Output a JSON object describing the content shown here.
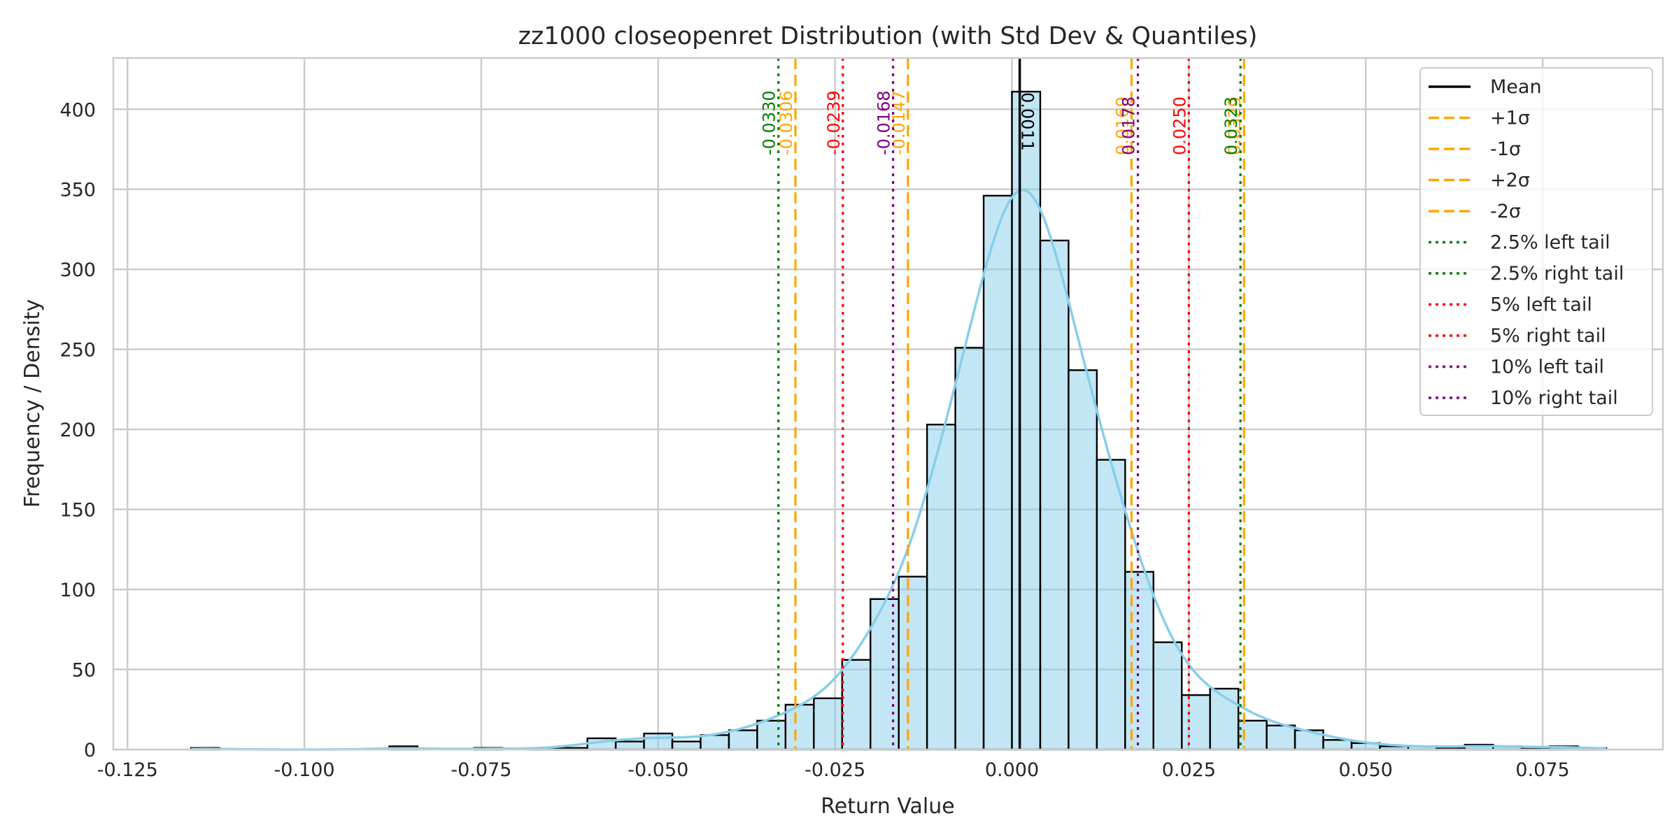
{
  "chart_data": {
    "type": "bar",
    "subtype": "histogram-with-kde",
    "title": "zz1000 closeopenret Distribution (with Std Dev & Quantiles)",
    "xlabel": "Return Value",
    "ylabel": "Frequency / Density",
    "xlim": [
      -0.127,
      0.092
    ],
    "ylim": [
      0,
      432
    ],
    "x_ticks": [
      -0.125,
      -0.1,
      -0.075,
      -0.05,
      -0.025,
      0.0,
      0.025,
      0.05,
      0.075
    ],
    "x_tick_labels": [
      "-0.125",
      "-0.100",
      "-0.075",
      "-0.050",
      "-0.025",
      "0.000",
      "0.025",
      "0.050",
      "0.075"
    ],
    "y_ticks": [
      0,
      50,
      100,
      150,
      200,
      250,
      300,
      350,
      400
    ],
    "y_tick_labels": [
      "0",
      "50",
      "100",
      "150",
      "200",
      "250",
      "300",
      "350",
      "400"
    ],
    "grid": true,
    "bin_start": -0.116,
    "bin_width": 0.004,
    "counts": [
      1,
      0,
      0,
      0,
      0,
      0,
      0,
      2,
      0,
      0,
      1,
      0,
      1,
      1,
      7,
      5,
      10,
      5,
      9,
      12,
      18,
      28,
      32,
      56,
      94,
      108,
      203,
      251,
      346,
      411,
      318,
      237,
      181,
      111,
      67,
      34,
      38,
      18,
      15,
      12,
      6,
      4,
      2,
      2,
      1,
      3,
      2,
      1,
      2,
      1
    ],
    "bar_color": "#87ceeb",
    "kde_color": "#87ceeb",
    "vertical_lines": [
      {
        "name": "Mean",
        "value": 0.0011,
        "label": "0.0011",
        "color": "#000000",
        "style": "solid"
      },
      {
        "name": "+1σ",
        "value": 0.0169,
        "label": "0.0169",
        "color": "#ffa500",
        "style": "dashed"
      },
      {
        "name": "-1σ",
        "value": -0.0147,
        "label": "-0.0147",
        "color": "#ffa500",
        "style": "dashed"
      },
      {
        "name": "+2σ",
        "value": 0.0328,
        "label": "0.0329",
        "color": "#ffa500",
        "style": "dashed"
      },
      {
        "name": "-2σ",
        "value": -0.0306,
        "label": "-0.0306",
        "color": "#ffa500",
        "style": "dashed"
      },
      {
        "name": "2.5% left tail",
        "value": -0.033,
        "label": "-0.0330",
        "color": "#008000",
        "style": "dotted"
      },
      {
        "name": "2.5% right tail",
        "value": 0.0323,
        "label": "0.0323",
        "color": "#008000",
        "style": "dotted"
      },
      {
        "name": "5% left tail",
        "value": -0.0239,
        "label": "-0.0239",
        "color": "#ff0000",
        "style": "dotted"
      },
      {
        "name": "5% right tail",
        "value": 0.025,
        "label": "0.0250",
        "color": "#ff0000",
        "style": "dotted"
      },
      {
        "name": "10% left tail",
        "value": -0.0168,
        "label": "-0.0168",
        "color": "#800080",
        "style": "dotted"
      },
      {
        "name": "10% right tail",
        "value": 0.0178,
        "label": "0.0178",
        "color": "#800080",
        "style": "dotted"
      }
    ],
    "legend": {
      "placement": "top-right",
      "entries": [
        "Mean",
        "+1σ",
        "-1σ",
        "+2σ",
        "-2σ",
        "2.5% left tail",
        "2.5% right tail",
        "5% left tail",
        "5% right tail",
        "10% left tail",
        "10% right tail"
      ]
    }
  }
}
